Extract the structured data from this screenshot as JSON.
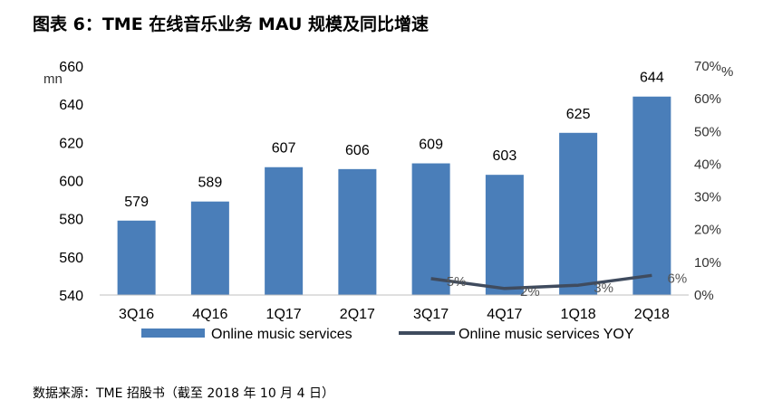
{
  "figure": {
    "title": "图表 6：TME 在线音乐业务 MAU 规模及同比增速",
    "source": "数据来源：TME 招股书（截至 2018 年 10 月 4 日）"
  },
  "chart_data": {
    "type": "bar",
    "categories": [
      "3Q16",
      "4Q16",
      "1Q17",
      "2Q17",
      "3Q17",
      "4Q17",
      "1Q18",
      "2Q18"
    ],
    "series": [
      {
        "name": "Online music services",
        "type": "bar",
        "axis": "left",
        "color": "#4a7eb9",
        "values": [
          579,
          589,
          607,
          606,
          609,
          603,
          625,
          644
        ],
        "labels": [
          "579",
          "589",
          "607",
          "606",
          "609",
          "603",
          "625",
          "644"
        ]
      },
      {
        "name": "Online music services YOY",
        "type": "line",
        "axis": "right",
        "color": "#3f4b5e",
        "values": [
          null,
          null,
          null,
          null,
          5,
          2,
          3,
          6
        ],
        "labels": [
          "",
          "",
          "",
          "",
          "5%",
          "2%",
          "3%",
          "6%"
        ]
      }
    ],
    "y_left": {
      "unit": "mn",
      "ylim": [
        540,
        660
      ],
      "ticks": [
        540,
        560,
        580,
        600,
        620,
        640,
        660
      ],
      "tick_labels": [
        "540",
        "560",
        "580",
        "600",
        "620",
        "640",
        "660"
      ]
    },
    "y_right": {
      "unit": "%",
      "ylim": [
        0,
        70
      ],
      "ticks": [
        0,
        10,
        20,
        30,
        40,
        50,
        60,
        70
      ],
      "tick_labels": [
        "0%",
        "10%",
        "20%",
        "30%",
        "40%",
        "50%",
        "60%",
        "70%"
      ]
    },
    "grid": false,
    "legend_position": "bottom"
  }
}
